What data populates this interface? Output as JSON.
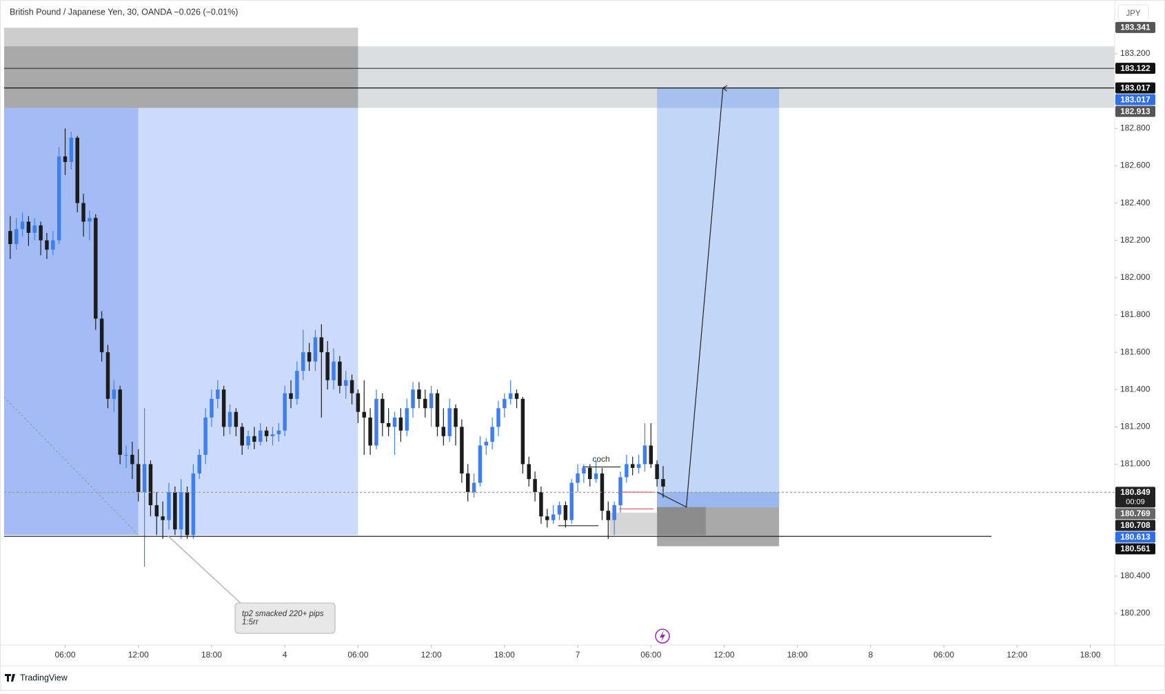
{
  "chart_data": {
    "type": "candlestick",
    "title": "British Pound / Japanese Yen, 30, OANDA  −0.026 (−0.01%)",
    "currency": "JPY",
    "footer": "TradingView",
    "up_color": "#3d7ff0",
    "down_color": "#1c1c1c",
    "xlim": [
      1,
      92
    ],
    "xticks": [
      {
        "value": 6,
        "label": "06:00"
      },
      {
        "value": 12,
        "label": "12:00"
      },
      {
        "value": 18,
        "label": "18:00"
      },
      {
        "value": 24,
        "label": "4"
      },
      {
        "value": 30,
        "label": "06:00"
      },
      {
        "value": 36,
        "label": "12:00"
      },
      {
        "value": 42,
        "label": "18:00"
      },
      {
        "value": 48,
        "label": "7"
      },
      {
        "value": 54,
        "label": "06:00"
      },
      {
        "value": 60,
        "label": "12:00"
      },
      {
        "value": 66,
        "label": "18:00"
      },
      {
        "value": 72,
        "label": "8"
      },
      {
        "value": 78,
        "label": "06:00"
      },
      {
        "value": 84,
        "label": "12:00"
      },
      {
        "value": 90,
        "label": "18:00"
      }
    ],
    "ylim": [
      180.03,
      183.47
    ],
    "yticks": [
      {
        "value": 180.2,
        "label": "180.200"
      },
      {
        "value": 180.4,
        "label": "180.400"
      },
      {
        "value": 180.6,
        "label": "180.600"
      },
      {
        "value": 180.8,
        "label": "180.800"
      },
      {
        "value": 181,
        "label": "181.000"
      },
      {
        "value": 181.2,
        "label": "181.200"
      },
      {
        "value": 181.4,
        "label": "181.400"
      },
      {
        "value": 181.6,
        "label": "181.600"
      },
      {
        "value": 181.8,
        "label": "181.800"
      },
      {
        "value": 182,
        "label": "182.000"
      },
      {
        "value": 182.2,
        "label": "182.200"
      },
      {
        "value": 182.4,
        "label": "182.400"
      },
      {
        "value": 182.6,
        "label": "182.600"
      },
      {
        "value": 182.8,
        "label": "182.800"
      },
      {
        "value": 183,
        "label": "183.000"
      },
      {
        "value": 183.2,
        "label": "183.200"
      }
    ],
    "x": [
      1.5,
      2,
      2.5,
      3,
      3.5,
      4,
      4.5,
      5,
      5.5,
      6,
      6.5,
      7,
      7.5,
      8,
      8.5,
      9,
      9.5,
      10,
      10.5,
      11,
      11.5,
      12,
      12.5,
      13,
      13.5,
      14,
      14.5,
      15,
      15.5,
      16,
      16.5,
      17,
      17.5,
      18,
      18.5,
      19,
      19.5,
      20,
      20.5,
      21,
      21.5,
      22,
      22.5,
      23,
      23.5,
      24,
      24.5,
      25,
      25.5,
      26,
      26.5,
      27,
      27.5,
      28,
      28.5,
      29,
      29.5,
      30,
      30.5,
      31,
      31.5,
      32,
      32.5,
      33,
      33.5,
      34,
      34.5,
      35,
      35.5,
      36,
      36.5,
      37,
      37.5,
      38,
      38.5,
      39,
      39.5,
      40,
      40.5,
      41,
      41.5,
      42,
      42.5,
      43,
      43.5,
      44,
      44.5,
      45,
      45.5,
      46,
      46.5,
      47,
      47.5,
      48,
      48.5,
      49,
      49.5,
      50,
      50.5,
      51,
      51.5,
      52,
      52.5,
      53,
      53.5,
      54,
      54.5,
      55
    ],
    "ohlc": [
      [
        182.25,
        182.33,
        182.1,
        182.18
      ],
      [
        182.18,
        182.32,
        182.15,
        182.26
      ],
      [
        182.26,
        182.35,
        182.22,
        182.3
      ],
      [
        182.3,
        182.33,
        182.17,
        182.24
      ],
      [
        182.24,
        182.32,
        182.2,
        182.28
      ],
      [
        182.28,
        182.3,
        182.12,
        182.2
      ],
      [
        182.2,
        182.24,
        182.1,
        182.15
      ],
      [
        182.15,
        182.25,
        182.12,
        182.2
      ],
      [
        182.2,
        182.7,
        182.18,
        182.65
      ],
      [
        182.65,
        182.8,
        182.55,
        182.62
      ],
      [
        182.62,
        182.78,
        182.58,
        182.75
      ],
      [
        182.75,
        182.76,
        182.35,
        182.4
      ],
      [
        182.4,
        182.45,
        182.22,
        182.3
      ],
      [
        182.3,
        182.36,
        182.2,
        182.32
      ],
      [
        182.32,
        182.34,
        181.72,
        181.78
      ],
      [
        181.78,
        181.82,
        181.55,
        181.6
      ],
      [
        181.6,
        181.64,
        181.3,
        181.35
      ],
      [
        181.35,
        181.45,
        181.28,
        181.4
      ],
      [
        181.4,
        181.42,
        181.0,
        181.05
      ],
      [
        181.05,
        181.1,
        180.98,
        181.05
      ],
      [
        181.05,
        181.12,
        180.92,
        181.0
      ],
      [
        181.0,
        181.08,
        180.8,
        180.85
      ],
      [
        180.85,
        181.3,
        180.45,
        181.0
      ],
      [
        181.0,
        181.02,
        180.72,
        180.78
      ],
      [
        180.78,
        180.85,
        180.62,
        180.72
      ],
      [
        180.72,
        180.8,
        180.6,
        180.7
      ],
      [
        180.7,
        180.9,
        180.65,
        180.85
      ],
      [
        180.85,
        180.88,
        180.62,
        180.65
      ],
      [
        180.65,
        180.92,
        180.6,
        180.85
      ],
      [
        180.85,
        180.88,
        180.6,
        180.62
      ],
      [
        180.62,
        181.0,
        180.6,
        180.95
      ],
      [
        180.95,
        181.08,
        180.92,
        181.05
      ],
      [
        181.05,
        181.3,
        181.0,
        181.25
      ],
      [
        181.25,
        181.4,
        181.2,
        181.35
      ],
      [
        181.35,
        181.45,
        181.3,
        181.4
      ],
      [
        181.4,
        181.42,
        181.15,
        181.2
      ],
      [
        181.2,
        181.32,
        181.16,
        181.28
      ],
      [
        181.28,
        181.3,
        181.15,
        181.2
      ],
      [
        181.2,
        181.22,
        181.05,
        181.1
      ],
      [
        181.1,
        181.18,
        181.08,
        181.15
      ],
      [
        181.15,
        181.2,
        181.08,
        181.12
      ],
      [
        181.12,
        181.22,
        181.1,
        181.18
      ],
      [
        181.18,
        181.2,
        181.12,
        181.15
      ],
      [
        181.15,
        181.2,
        181.1,
        181.16
      ],
      [
        181.16,
        181.22,
        181.12,
        181.18
      ],
      [
        181.18,
        181.42,
        181.15,
        181.38
      ],
      [
        181.38,
        181.45,
        181.3,
        181.35
      ],
      [
        181.35,
        181.55,
        181.32,
        181.5
      ],
      [
        181.5,
        181.72,
        181.45,
        181.6
      ],
      [
        181.6,
        181.65,
        181.5,
        181.55
      ],
      [
        181.55,
        181.72,
        181.5,
        181.68
      ],
      [
        181.68,
        181.75,
        181.25,
        181.6
      ],
      [
        181.6,
        181.66,
        181.4,
        181.45
      ],
      [
        181.45,
        181.62,
        181.4,
        181.55
      ],
      [
        181.55,
        181.58,
        181.38,
        181.42
      ],
      [
        181.42,
        181.5,
        181.35,
        181.45
      ],
      [
        181.45,
        181.48,
        181.32,
        181.38
      ],
      [
        181.38,
        181.4,
        181.22,
        181.28
      ],
      [
        181.28,
        181.45,
        181.05,
        181.25
      ],
      [
        181.25,
        181.3,
        181.05,
        181.1
      ],
      [
        181.1,
        181.4,
        181.08,
        181.35
      ],
      [
        181.35,
        181.38,
        181.15,
        181.22
      ],
      [
        181.22,
        181.3,
        181.15,
        181.2
      ],
      [
        181.2,
        181.28,
        181.05,
        181.25
      ],
      [
        181.25,
        181.3,
        181.12,
        181.18
      ],
      [
        181.18,
        181.35,
        181.15,
        181.3
      ],
      [
        181.3,
        181.44,
        181.25,
        181.4
      ],
      [
        181.4,
        181.44,
        181.3,
        181.35
      ],
      [
        181.35,
        181.4,
        181.25,
        181.3
      ],
      [
        181.3,
        181.42,
        181.2,
        181.38
      ],
      [
        181.38,
        181.4,
        181.15,
        181.2
      ],
      [
        181.2,
        181.3,
        181.1,
        181.15
      ],
      [
        181.15,
        181.35,
        181.12,
        181.3
      ],
      [
        181.3,
        181.32,
        181.1,
        181.2
      ],
      [
        181.2,
        181.24,
        180.9,
        180.95
      ],
      [
        180.95,
        181.0,
        180.8,
        180.85
      ],
      [
        180.85,
        180.95,
        180.82,
        180.9
      ],
      [
        180.9,
        181.15,
        180.88,
        181.1
      ],
      [
        181.1,
        181.14,
        181.05,
        181.12
      ],
      [
        181.12,
        181.25,
        181.08,
        181.2
      ],
      [
        181.2,
        181.34,
        181.15,
        181.3
      ],
      [
        181.3,
        181.38,
        181.25,
        181.35
      ],
      [
        181.35,
        181.45,
        181.32,
        181.38
      ],
      [
        181.38,
        181.4,
        181.3,
        181.35
      ],
      [
        181.35,
        181.36,
        180.95,
        181.0
      ],
      [
        181.0,
        181.04,
        180.88,
        180.92
      ],
      [
        180.92,
        180.96,
        180.8,
        180.85
      ],
      [
        180.85,
        180.88,
        180.68,
        180.72
      ],
      [
        180.72,
        180.76,
        180.66,
        180.7
      ],
      [
        180.7,
        180.78,
        180.68,
        180.73
      ],
      [
        180.73,
        180.8,
        180.7,
        180.78
      ],
      [
        180.78,
        180.8,
        180.66,
        180.7
      ],
      [
        180.7,
        180.92,
        180.68,
        180.9
      ],
      [
        180.9,
        181.0,
        180.85,
        180.95
      ],
      [
        180.95,
        181.0,
        180.9,
        180.98
      ],
      [
        180.98,
        181.0,
        180.88,
        180.92
      ],
      [
        180.92,
        181.02,
        180.9,
        180.95
      ],
      [
        180.95,
        180.98,
        180.7,
        180.75
      ],
      [
        180.75,
        180.8,
        180.6,
        180.7
      ],
      [
        180.7,
        180.8,
        180.62,
        180.78
      ],
      [
        180.78,
        180.96,
        180.74,
        180.93
      ],
      [
        180.93,
        181.05,
        180.9,
        181.0
      ],
      [
        181.0,
        181.04,
        180.94,
        180.98
      ],
      [
        180.98,
        181.05,
        180.95,
        181.0
      ],
      [
        181.0,
        181.22,
        180.96,
        181.1
      ],
      [
        181.1,
        181.22,
        180.98,
        181.0
      ],
      [
        181.0,
        181.02,
        180.88,
        180.92
      ],
      [
        180.92,
        180.99,
        180.82,
        180.88
      ]
    ],
    "zones": [
      {
        "x": [
          30,
          92
        ],
        "y": [
          183.24,
          182.91
        ],
        "color": "#dcdddf"
      },
      {
        "x": [
          1,
          30
        ],
        "y": [
          183.34,
          182.91
        ],
        "color": "#cdcdcd"
      },
      {
        "x": [
          1,
          30
        ],
        "y": [
          183.24,
          182.91
        ],
        "color": "#a9a9a9"
      },
      {
        "x": [
          1,
          12
        ],
        "y": [
          182.91,
          180.62
        ],
        "color": "#a3bcf5"
      },
      {
        "x": [
          12,
          30
        ],
        "y": [
          182.91,
          180.62
        ],
        "color": "#ccdbfb"
      },
      {
        "x": [
          54.5,
          64.5
        ],
        "y": [
          183.017,
          180.77
        ],
        "color": "#c2d7f7"
      },
      {
        "x": [
          54.5,
          64.5
        ],
        "y": [
          183.017,
          182.91
        ],
        "color": "#a7c1ee"
      },
      {
        "x": [
          54.5,
          64.5
        ],
        "y": [
          180.85,
          180.77
        ],
        "color": "#98b8ef"
      },
      {
        "x": [
          54.5,
          64.5
        ],
        "y": [
          180.77,
          180.56
        ],
        "color": "#a8a8a8"
      },
      {
        "x": [
          54.5,
          58.5
        ],
        "y": [
          180.77,
          180.62
        ],
        "color": "#8c8c8c"
      },
      {
        "x": [
          50.6,
          54.5
        ],
        "y": [
          180.74,
          180.62
        ],
        "color": "#d6d6d6"
      }
    ],
    "lines": [
      {
        "x": [
          1,
          92
        ],
        "y": [
          183.122,
          183.122
        ],
        "color": "#333333",
        "dash": false,
        "arrow": false
      },
      {
        "x": [
          1,
          92
        ],
        "y": [
          183.017,
          183.017
        ],
        "color": "#111111",
        "dash": false,
        "arrow": false
      },
      {
        "x": [
          1,
          92
        ],
        "y": [
          180.849,
          180.849
        ],
        "color": "#999999",
        "dash": true,
        "arrow": false
      },
      {
        "x": [
          1,
          81.9
        ],
        "y": [
          180.613,
          180.613
        ],
        "color": "#222222",
        "dash": false,
        "arrow": false
      },
      {
        "x": [
          1,
          12
        ],
        "y": [
          181.36,
          180.62
        ],
        "color": "#9a9aa6",
        "dash": true,
        "arrow": false
      },
      {
        "x": [
          51.4,
          54.2
        ],
        "y": [
          180.85,
          180.85
        ],
        "color": "#e05060",
        "dash": false,
        "arrow": false
      },
      {
        "x": [
          51.4,
          54.2
        ],
        "y": [
          180.76,
          180.76
        ],
        "color": "#e05060",
        "dash": false,
        "arrow": false
      },
      {
        "x": [
          48.4,
          51.5
        ],
        "y": [
          180.985,
          180.985
        ],
        "color": "#222222",
        "dash": false,
        "arrow": false
      },
      {
        "x": [
          46.4,
          49.7
        ],
        "y": [
          180.67,
          180.67
        ],
        "color": "#222222",
        "dash": false,
        "arrow": false
      },
      {
        "x": [
          54.5,
          56.9,
          59.9
        ],
        "y": [
          180.85,
          180.77,
          183.017
        ],
        "color": "#222222",
        "dash": false,
        "arrow": true
      }
    ],
    "price_tags": [
      {
        "price": 183.341,
        "color": "#555555"
      },
      {
        "price": 183.122,
        "color": "#111111"
      },
      {
        "price": 183.017,
        "color": "#111111"
      },
      {
        "price": 183.017,
        "color": "#2f6fe8"
      },
      {
        "price": 182.913,
        "color": "#555555"
      },
      {
        "price": 180.849,
        "color": "#222222",
        "countdown": "00:09"
      },
      {
        "price": 180.769,
        "color": "#666666"
      },
      {
        "price": 180.708,
        "color": "#222222"
      },
      {
        "price": 180.613,
        "color": "#2f6fe8"
      },
      {
        "price": 180.561,
        "color": "#111111"
      }
    ],
    "annotations": [
      {
        "text": [
          "tp2 smacked 220+ pips",
          "1:5rr"
        ]
      },
      {
        "text": "coch"
      }
    ]
  }
}
